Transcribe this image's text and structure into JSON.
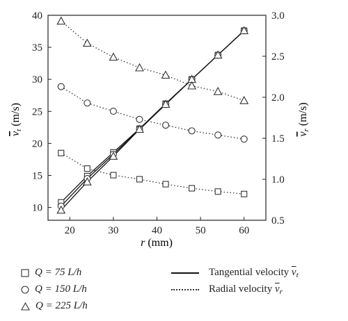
{
  "chart_data": {
    "type": "line",
    "x": [
      18,
      24,
      30,
      36,
      42,
      48,
      54,
      60
    ],
    "xlabel": "r (mm)",
    "xlim": [
      15,
      65
    ],
    "xticks": [
      "20",
      "30",
      "40",
      "50",
      "60"
    ],
    "ylabel_left": "v̄t (m/s)",
    "ylim_left": [
      8,
      40
    ],
    "yticks_left": [
      "10",
      "15",
      "20",
      "25",
      "30",
      "35",
      "40"
    ],
    "ylabel_right": "v̄r (m/s)",
    "ylim_right": [
      0.5,
      3.0
    ],
    "yticks_right": [
      "0.5",
      "1.0",
      "1.5",
      "2.0",
      "2.5",
      "3.0"
    ],
    "series": [
      {
        "name": "Q = 75 L/h",
        "marker": "square",
        "axis": "left",
        "kind": "tangential",
        "values": [
          10.8,
          14.9,
          18.6,
          22.3,
          26.2,
          30.0,
          33.8,
          37.6
        ]
      },
      {
        "name": "Q = 150 L/h",
        "marker": "circle",
        "axis": "left",
        "kind": "tangential",
        "values": [
          10.2,
          14.5,
          18.3,
          22.2,
          26.1,
          30.0,
          33.8,
          37.6
        ]
      },
      {
        "name": "Q = 225 L/h",
        "marker": "triangle",
        "axis": "left",
        "kind": "tangential",
        "values": [
          9.6,
          14.0,
          18.0,
          22.2,
          26.1,
          30.0,
          33.8,
          37.6
        ]
      },
      {
        "name": "Q = 75 L/h",
        "marker": "square",
        "axis": "right",
        "kind": "radial",
        "values": [
          1.32,
          1.13,
          1.05,
          1.0,
          0.94,
          0.89,
          0.85,
          0.82
        ]
      },
      {
        "name": "Q = 150 L/h",
        "marker": "circle",
        "axis": "right",
        "kind": "radial",
        "values": [
          2.13,
          1.93,
          1.83,
          1.73,
          1.66,
          1.59,
          1.54,
          1.49
        ]
      },
      {
        "name": "Q = 225 L/h",
        "marker": "triangle",
        "axis": "right",
        "kind": "radial",
        "values": [
          2.93,
          2.66,
          2.49,
          2.36,
          2.27,
          2.14,
          2.07,
          1.96
        ]
      }
    ],
    "grid": false
  },
  "legend": {
    "q1": "Q = 75 L/h",
    "q2": "Q = 150 L/h",
    "q3": "Q = 225 L/h",
    "tangential": "Tangential velocity",
    "radial": "Radial velocity",
    "sub_t": "t",
    "sub_r": "r",
    "sym": "v"
  }
}
